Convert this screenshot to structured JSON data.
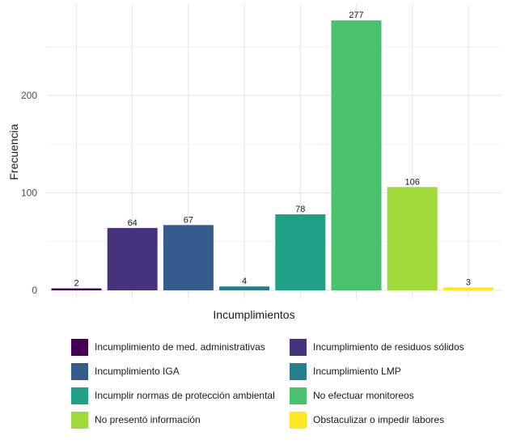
{
  "chart_data": {
    "type": "bar",
    "xlabel": "Incumplimientos",
    "ylabel": "Frecuencia",
    "ylim": [
      0,
      290
    ],
    "yticks": [
      0,
      100,
      200
    ],
    "grid": true,
    "legend_position": "bottom",
    "categories": [
      "Incumplimiento de med. administrativas",
      "Incumplimiento de residuos sólidos",
      "Incumplimiento IGA",
      "Incumplimiento LMP",
      "Incumplir normas de protección ambiental",
      "No efectuar monitoreos",
      "No presentó información",
      "Obstaculizar o impedir labores"
    ],
    "values": [
      2,
      64,
      67,
      4,
      78,
      277,
      106,
      3
    ],
    "colors": [
      "#440154",
      "#46337E",
      "#365C8D",
      "#277F8E",
      "#1FA187",
      "#4AC16D",
      "#9FDA3A",
      "#FDE725"
    ]
  }
}
